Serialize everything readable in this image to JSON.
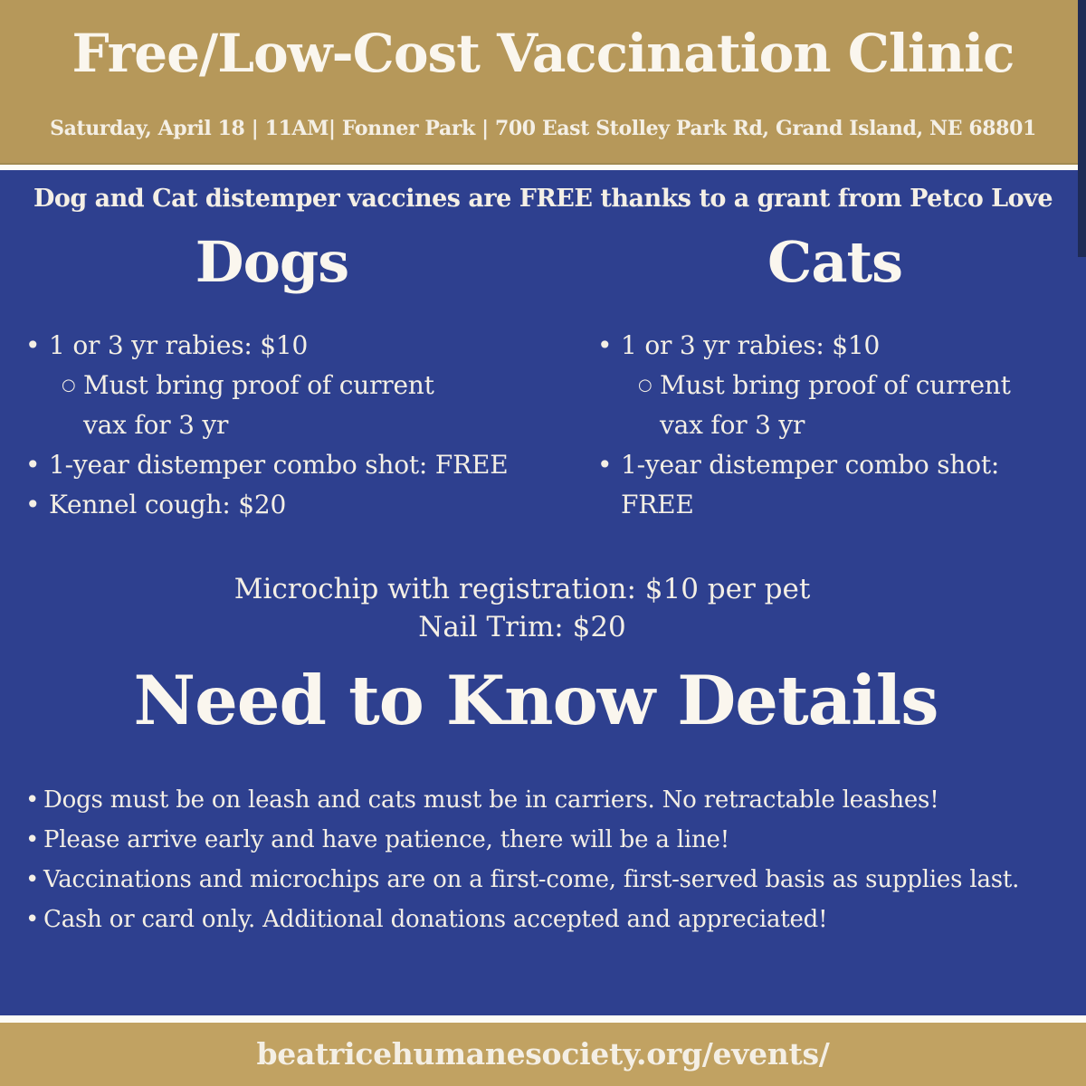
{
  "colors": {
    "header_gold": "#b6985a",
    "footer_gold": "#c1a262",
    "body_blue": "#2e408f",
    "edge_navy": "#1f2b55",
    "divider_white": "#fdfcf6",
    "text_cream": "#f4efe5",
    "text_bright": "#faf6ee"
  },
  "icons": {
    "bullet": "•",
    "sub_bullet": "○"
  },
  "header": {
    "title": "Free/Low-Cost Vaccination Clinic",
    "subtitle": "Saturday, April 18 | 11AM| Fonner Park | 700 East Stolley Park Rd, Grand Island, NE 68801"
  },
  "banner": "Dog and Cat distemper vaccines are FREE thanks to a grant from Petco Love",
  "columns": [
    {
      "heading": "Dogs",
      "items": [
        {
          "level": 1,
          "text": "1 or 3 yr rabies: $10"
        },
        {
          "level": 2,
          "text": "Must bring proof of current vax for 3 yr"
        },
        {
          "level": 1,
          "text": "1-year distemper combo shot: FREE"
        },
        {
          "level": 1,
          "text": "Kennel cough: $20"
        }
      ]
    },
    {
      "heading": "Cats",
      "items": [
        {
          "level": 1,
          "text": "1 or 3 yr rabies: $10"
        },
        {
          "level": 2,
          "text": "Must bring proof of current vax for 3 yr"
        },
        {
          "level": 1,
          "text": "1-year distemper combo shot: FREE"
        }
      ]
    }
  ],
  "extras": [
    "Microchip with registration: $10 per pet",
    "Nail Trim: $20"
  ],
  "details": {
    "heading": "Need to Know Details",
    "items": [
      "Dogs must be on leash and cats must be in carriers. No retractable leashes!",
      "Please arrive early and have patience, there will be a line!",
      "Vaccinations and microchips are on a first-come, first-served basis as supplies last.",
      "Cash or card only. Additional donations accepted and appreciated!"
    ]
  },
  "footer": {
    "url": "beatricehumanesociety.org/events/"
  }
}
